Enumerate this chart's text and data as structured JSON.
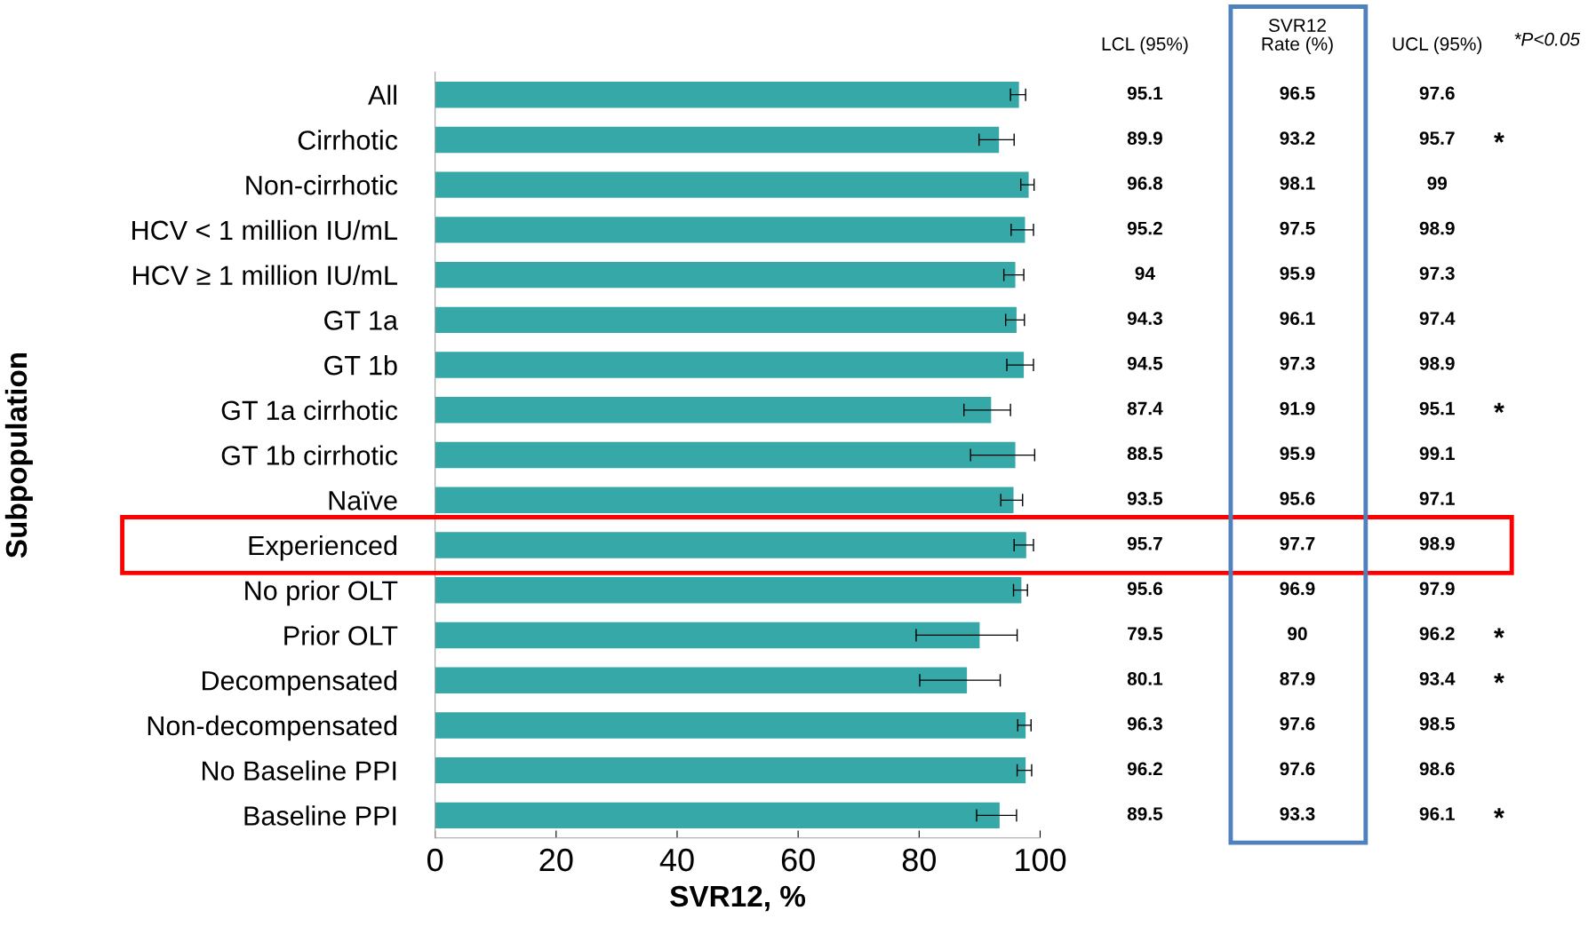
{
  "chart_data": {
    "type": "bar",
    "orientation": "horizontal",
    "xlabel": "SVR12, %",
    "ylabel": "Subpopulation",
    "categories": [
      "All",
      "Cirrhotic",
      "Non-cirrhotic",
      "HCV < 1 million IU/mL",
      "HCV ≥ 1 million IU/mL",
      "GT 1a",
      "GT 1b",
      "GT 1a cirrhotic",
      "GT 1b cirrhotic",
      "Naïve",
      "Experienced",
      "No prior OLT",
      "Prior OLT",
      "Decompensated",
      "Non-decompensated",
      "No Baseline PPI",
      "Baseline PPI"
    ],
    "values": [
      96.5,
      93.2,
      98.1,
      97.5,
      95.9,
      96.1,
      97.3,
      91.9,
      95.9,
      95.6,
      97.7,
      96.9,
      90,
      87.9,
      97.6,
      97.6,
      93.3
    ],
    "errors": [
      [
        95.1,
        97.6
      ],
      [
        89.9,
        95.7
      ],
      [
        96.8,
        99
      ],
      [
        95.2,
        98.9
      ],
      [
        94,
        97.3
      ],
      [
        94.3,
        97.4
      ],
      [
        94.5,
        98.9
      ],
      [
        87.4,
        95.1
      ],
      [
        88.5,
        99.1
      ],
      [
        93.5,
        97.1
      ],
      [
        95.7,
        98.9
      ],
      [
        95.6,
        97.9
      ],
      [
        79.5,
        96.2
      ],
      [
        80.1,
        93.4
      ],
      [
        96.3,
        98.5
      ],
      [
        96.2,
        98.6
      ],
      [
        89.5,
        96.1
      ]
    ],
    "color": "#36a8a8",
    "xlim": [
      0,
      100
    ],
    "xticks": [
      0,
      20,
      40,
      60,
      80,
      100
    ],
    "grid": false,
    "annotations": [
      "LCL (95%)",
      "SVR12\nRate (%)",
      "UCL (95%)",
      "*P<0.05",
      "95.1",
      "89.9",
      "96.8",
      "95.2",
      "94",
      "94.3",
      "94.5",
      "87.4",
      "88.5",
      "93.5",
      "95.7",
      "95.6",
      "79.5",
      "80.1",
      "96.3",
      "96.2",
      "89.5",
      "96.5",
      "93.2",
      "98.1",
      "97.5",
      "95.9",
      "96.1",
      "97.3",
      "91.9",
      "95.9",
      "95.6",
      "97.7",
      "96.9",
      "90",
      "87.9",
      "97.6",
      "97.6",
      "93.3",
      "97.6",
      "95.7",
      "99",
      "98.9",
      "97.3",
      "97.4",
      "98.9",
      "95.1",
      "99.1",
      "97.1",
      "98.9",
      "97.9",
      "96.2",
      "93.4",
      "98.5",
      "98.6",
      "96.1",
      "*",
      "*",
      "*",
      "*",
      "*"
    ]
  }
}
